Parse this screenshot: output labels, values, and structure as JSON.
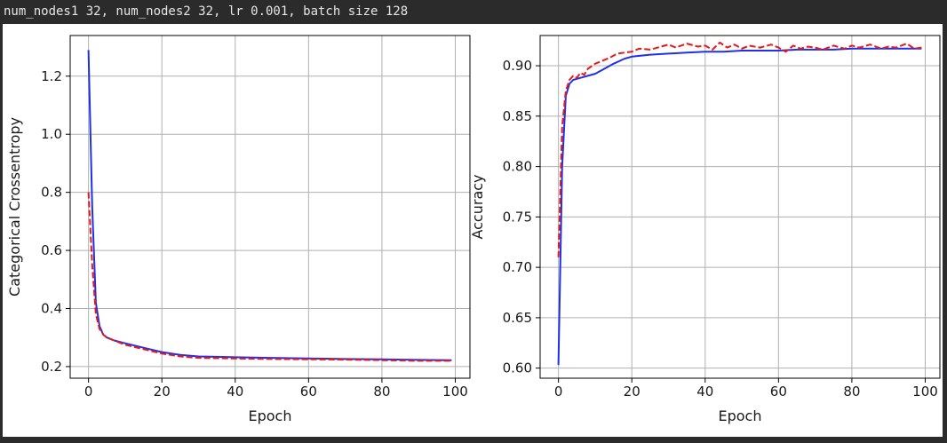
{
  "output": {
    "text": "num_nodes1 32, num_nodes2 32, lr 0.001, batch size 128"
  },
  "colors": {
    "train": "#2030e8",
    "val": "#e81818",
    "grid": "#b0b0b0"
  },
  "chart_data": [
    {
      "type": "line",
      "title": "",
      "xlabel": "Epoch",
      "ylabel": "Categorical Crossentropy",
      "xlim": [
        -5,
        104
      ],
      "ylim": [
        0.16,
        1.34
      ],
      "xticks": [
        0,
        20,
        40,
        60,
        80,
        100
      ],
      "yticks": [
        0.2,
        0.4,
        0.6,
        0.8,
        1.0,
        1.2
      ],
      "grid": true,
      "legend": "none",
      "series": [
        {
          "style": "solid",
          "color": "#2030e8",
          "points": [
            [
              0,
              1.29
            ],
            [
              1,
              0.75
            ],
            [
              2,
              0.42
            ],
            [
              3,
              0.34
            ],
            [
              4,
              0.31
            ],
            [
              5,
              0.3
            ],
            [
              7,
              0.29
            ],
            [
              10,
              0.28
            ],
            [
              15,
              0.265
            ],
            [
              20,
              0.25
            ],
            [
              25,
              0.24
            ],
            [
              30,
              0.235
            ],
            [
              40,
              0.232
            ],
            [
              50,
              0.23
            ],
            [
              60,
              0.228
            ],
            [
              70,
              0.226
            ],
            [
              80,
              0.225
            ],
            [
              90,
              0.223
            ],
            [
              99,
              0.222
            ]
          ]
        },
        {
          "style": "dashed",
          "color": "#e81818",
          "points": [
            [
              0,
              0.8
            ],
            [
              1,
              0.55
            ],
            [
              2,
              0.38
            ],
            [
              3,
              0.33
            ],
            [
              4,
              0.31
            ],
            [
              5,
              0.3
            ],
            [
              7,
              0.29
            ],
            [
              10,
              0.275
            ],
            [
              15,
              0.26
            ],
            [
              20,
              0.245
            ],
            [
              25,
              0.235
            ],
            [
              30,
              0.23
            ],
            [
              40,
              0.228
            ],
            [
              50,
              0.226
            ],
            [
              60,
              0.225
            ],
            [
              70,
              0.224
            ],
            [
              80,
              0.222
            ],
            [
              90,
              0.22
            ],
            [
              99,
              0.22
            ]
          ]
        }
      ]
    },
    {
      "type": "line",
      "title": "",
      "xlabel": "Epoch",
      "ylabel": "Accuracy",
      "xlim": [
        -5,
        104
      ],
      "ylim": [
        0.59,
        0.93
      ],
      "xticks": [
        0,
        20,
        40,
        60,
        80,
        100
      ],
      "yticks": [
        0.6,
        0.65,
        0.7,
        0.75,
        0.8,
        0.85,
        0.9
      ],
      "grid": true,
      "legend": "none",
      "series": [
        {
          "style": "solid",
          "color": "#2030e8",
          "points": [
            [
              0,
              0.603
            ],
            [
              1,
              0.8
            ],
            [
              2,
              0.87
            ],
            [
              3,
              0.882
            ],
            [
              4,
              0.886
            ],
            [
              6,
              0.888
            ],
            [
              8,
              0.89
            ],
            [
              10,
              0.892
            ],
            [
              12,
              0.896
            ],
            [
              15,
              0.902
            ],
            [
              18,
              0.907
            ],
            [
              20,
              0.909
            ],
            [
              25,
              0.911
            ],
            [
              30,
              0.912
            ],
            [
              35,
              0.913
            ],
            [
              40,
              0.914
            ],
            [
              45,
              0.914
            ],
            [
              50,
              0.915
            ],
            [
              55,
              0.915
            ],
            [
              60,
              0.915
            ],
            [
              65,
              0.916
            ],
            [
              70,
              0.916
            ],
            [
              75,
              0.916
            ],
            [
              80,
              0.917
            ],
            [
              85,
              0.917
            ],
            [
              90,
              0.917
            ],
            [
              95,
              0.917
            ],
            [
              99,
              0.917
            ]
          ]
        },
        {
          "style": "dashed",
          "color": "#e81818",
          "points": [
            [
              0,
              0.71
            ],
            [
              1,
              0.84
            ],
            [
              2,
              0.875
            ],
            [
              3,
              0.886
            ],
            [
              4,
              0.89
            ],
            [
              5,
              0.888
            ],
            [
              6,
              0.893
            ],
            [
              7,
              0.891
            ],
            [
              8,
              0.897
            ],
            [
              10,
              0.902
            ],
            [
              12,
              0.905
            ],
            [
              14,
              0.908
            ],
            [
              16,
              0.912
            ],
            [
              18,
              0.913
            ],
            [
              20,
              0.914
            ],
            [
              22,
              0.917
            ],
            [
              25,
              0.916
            ],
            [
              28,
              0.919
            ],
            [
              30,
              0.921
            ],
            [
              32,
              0.918
            ],
            [
              35,
              0.922
            ],
            [
              38,
              0.919
            ],
            [
              40,
              0.92
            ],
            [
              42,
              0.916
            ],
            [
              44,
              0.923
            ],
            [
              46,
              0.918
            ],
            [
              48,
              0.921
            ],
            [
              50,
              0.917
            ],
            [
              52,
              0.92
            ],
            [
              55,
              0.918
            ],
            [
              58,
              0.921
            ],
            [
              60,
              0.918
            ],
            [
              62,
              0.914
            ],
            [
              64,
              0.92
            ],
            [
              66,
              0.917
            ],
            [
              68,
              0.919
            ],
            [
              70,
              0.918
            ],
            [
              72,
              0.916
            ],
            [
              75,
              0.92
            ],
            [
              78,
              0.917
            ],
            [
              80,
              0.92
            ],
            [
              82,
              0.918
            ],
            [
              85,
              0.921
            ],
            [
              88,
              0.917
            ],
            [
              90,
              0.919
            ],
            [
              92,
              0.918
            ],
            [
              95,
              0.922
            ],
            [
              97,
              0.917
            ],
            [
              99,
              0.918
            ]
          ]
        }
      ]
    }
  ]
}
